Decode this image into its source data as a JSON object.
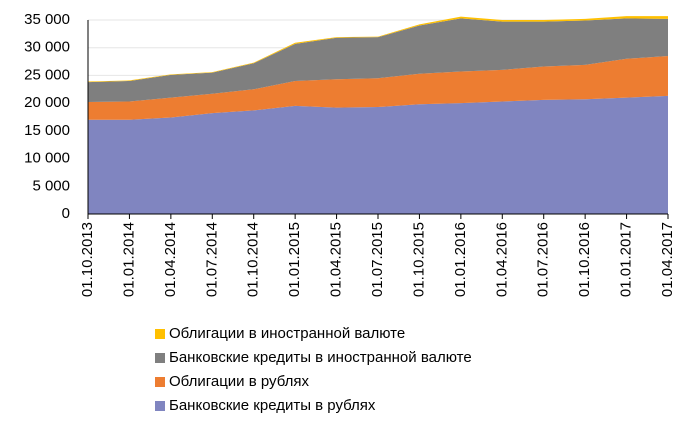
{
  "chart_data": {
    "type": "stacked_area",
    "categories": [
      "01.10.2013",
      "01.01.2014",
      "01.04.2014",
      "01.07.2014",
      "01.10.2014",
      "01.01.2015",
      "01.04.2015",
      "01.07.2015",
      "01.10.2015",
      "01.01.2016",
      "01.04.2016",
      "01.07.2016",
      "01.10.2016",
      "01.01.2017",
      "01.04.2017"
    ],
    "series": [
      {
        "name": "Банковские кредиты в рублях",
        "color": "#8085c0",
        "values": [
          17000,
          17000,
          17400,
          18200,
          18700,
          19500,
          19200,
          19300,
          19800,
          20000,
          20300,
          20600,
          20700,
          21000,
          21300
        ]
      },
      {
        "name": "Облигации в рублях",
        "color": "#ed7d31",
        "values": [
          3200,
          3300,
          3600,
          3500,
          3800,
          4500,
          5100,
          5200,
          5500,
          5700,
          5700,
          6000,
          6200,
          7000,
          7200
        ]
      },
      {
        "name": "Банковские кредиты в иностранной валюте",
        "color": "#7f7f7f",
        "values": [
          3600,
          3700,
          4100,
          3800,
          4700,
          6700,
          7500,
          7400,
          8700,
          9600,
          8700,
          8100,
          8000,
          7300,
          6700
        ]
      },
      {
        "name": "Облигации в иностранной валюте",
        "color": "#ffc000",
        "values": [
          100,
          100,
          100,
          100,
          100,
          200,
          100,
          100,
          200,
          300,
          300,
          300,
          300,
          400,
          500
        ]
      }
    ],
    "ylim": [
      0,
      35000
    ],
    "yticks": [
      0,
      {
        "value": 5000,
        "label": "5 000"
      },
      {
        "value": 10000,
        "label": "10 000"
      },
      {
        "value": 15000,
        "label": "15 000"
      },
      {
        "value": 20000,
        "label": "20 000"
      },
      {
        "value": 25000,
        "label": "25 000"
      },
      {
        "value": 30000,
        "label": "30 000"
      },
      {
        "value": 35000,
        "label": "35 000"
      }
    ],
    "grid": true
  }
}
